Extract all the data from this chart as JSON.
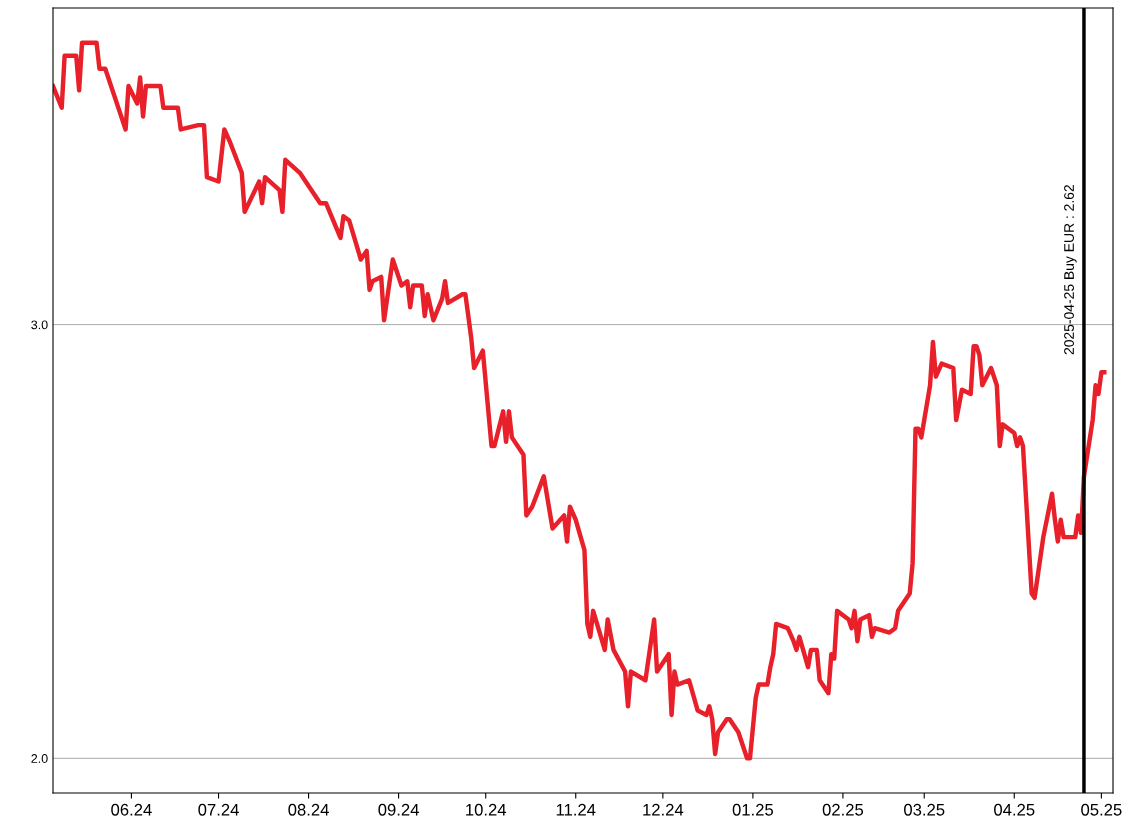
{
  "chart_data": {
    "type": "line",
    "x": [
      "2024-05-05",
      "2024-05-08",
      "2024-05-09",
      "2024-05-13",
      "2024-05-14",
      "2024-05-15",
      "2024-05-20",
      "2024-05-21",
      "2024-05-23",
      "2024-05-28",
      "2024-05-30",
      "2024-05-31",
      "2024-06-03",
      "2024-06-04",
      "2024-06-05",
      "2024-06-06",
      "2024-06-11",
      "2024-06-12",
      "2024-06-17",
      "2024-06-18",
      "2024-06-24",
      "2024-06-26",
      "2024-06-27",
      "2024-07-01",
      "2024-07-02",
      "2024-07-03",
      "2024-07-05",
      "2024-07-09",
      "2024-07-10",
      "2024-07-15",
      "2024-07-16",
      "2024-07-17",
      "2024-07-22",
      "2024-07-23",
      "2024-07-24",
      "2024-07-29",
      "2024-07-31",
      "2024-08-05",
      "2024-08-07",
      "2024-08-12",
      "2024-08-13",
      "2024-08-15",
      "2024-08-19",
      "2024-08-21",
      "2024-08-22",
      "2024-08-23",
      "2024-08-26",
      "2024-08-27",
      "2024-08-30",
      "2024-09-02",
      "2024-09-04",
      "2024-09-05",
      "2024-09-06",
      "2024-09-09",
      "2024-09-10",
      "2024-09-11",
      "2024-09-13",
      "2024-09-16",
      "2024-09-17",
      "2024-09-18",
      "2024-09-23",
      "2024-09-24",
      "2024-09-26",
      "2024-09-27",
      "2024-09-30",
      "2024-10-03",
      "2024-10-04",
      "2024-10-07",
      "2024-10-08",
      "2024-10-09",
      "2024-10-10",
      "2024-10-14",
      "2024-10-15",
      "2024-10-17",
      "2024-10-21",
      "2024-10-23",
      "2024-10-24",
      "2024-10-28",
      "2024-10-29",
      "2024-10-30",
      "2024-11-01",
      "2024-11-04",
      "2024-11-05",
      "2024-11-06",
      "2024-11-07",
      "2024-11-11",
      "2024-11-12",
      "2024-11-14",
      "2024-11-18",
      "2024-11-19",
      "2024-11-20",
      "2024-11-25",
      "2024-11-28",
      "2024-11-29",
      "2024-12-03",
      "2024-12-04",
      "2024-12-05",
      "2024-12-06",
      "2024-12-10",
      "2024-12-13",
      "2024-12-16",
      "2024-12-17",
      "2024-12-18",
      "2024-12-19",
      "2024-12-20",
      "2024-12-23",
      "2024-12-24",
      "2024-12-27",
      "2024-12-30",
      "2024-12-31",
      "2025-01-02",
      "2025-01-03",
      "2025-01-06",
      "2025-01-07",
      "2025-01-08",
      "2025-01-09",
      "2025-01-13",
      "2025-01-15",
      "2025-01-16",
      "2025-01-17",
      "2025-01-20",
      "2025-01-21",
      "2025-01-23",
      "2025-01-24",
      "2025-01-27",
      "2025-01-28",
      "2025-01-29",
      "2025-01-30",
      "2025-02-03",
      "2025-02-04",
      "2025-02-05",
      "2025-02-06",
      "2025-02-07",
      "2025-02-10",
      "2025-02-11",
      "2025-02-12",
      "2025-02-17",
      "2025-02-19",
      "2025-02-20",
      "2025-02-24",
      "2025-02-25",
      "2025-02-26",
      "2025-02-27",
      "2025-02-28",
      "2025-03-03",
      "2025-03-04",
      "2025-03-05",
      "2025-03-07",
      "2025-03-11",
      "2025-03-12",
      "2025-03-14",
      "2025-03-17",
      "2025-03-18",
      "2025-03-19",
      "2025-03-20",
      "2025-03-21",
      "2025-03-24",
      "2025-03-26",
      "2025-03-27",
      "2025-03-28",
      "2025-04-01",
      "2025-04-02",
      "2025-04-03",
      "2025-04-04",
      "2025-04-07",
      "2025-04-08",
      "2025-04-11",
      "2025-04-14",
      "2025-04-15",
      "2025-04-16",
      "2025-04-17",
      "2025-04-18",
      "2025-04-22",
      "2025-04-23",
      "2025-04-24",
      "2025-04-25",
      "2025-04-28",
      "2025-04-29",
      "2025-04-30",
      "2025-05-01",
      "2025-05-02"
    ],
    "series": [
      {
        "color": "#e8202a",
        "values": [
          3.55,
          3.5,
          3.62,
          3.62,
          3.54,
          3.65,
          3.65,
          3.59,
          3.59,
          3.49,
          3.45,
          3.55,
          3.51,
          3.57,
          3.48,
          3.55,
          3.55,
          3.5,
          3.5,
          3.45,
          3.46,
          3.46,
          3.34,
          3.33,
          3.39,
          3.45,
          3.42,
          3.35,
          3.26,
          3.33,
          3.28,
          3.34,
          3.31,
          3.26,
          3.38,
          3.35,
          3.33,
          3.28,
          3.28,
          3.2,
          3.25,
          3.24,
          3.15,
          3.17,
          3.08,
          3.1,
          3.11,
          3.01,
          3.15,
          3.09,
          3.1,
          3.04,
          3.09,
          3.09,
          3.02,
          3.07,
          3.01,
          3.06,
          3.1,
          3.05,
          3.07,
          3.07,
          2.97,
          2.9,
          2.94,
          2.72,
          2.72,
          2.8,
          2.73,
          2.8,
          2.74,
          2.7,
          2.56,
          2.58,
          2.65,
          2.57,
          2.53,
          2.56,
          2.5,
          2.58,
          2.55,
          2.48,
          2.31,
          2.28,
          2.34,
          2.25,
          2.32,
          2.25,
          2.2,
          2.12,
          2.2,
          2.18,
          2.32,
          2.2,
          2.24,
          2.1,
          2.2,
          2.17,
          2.18,
          2.11,
          2.1,
          2.12,
          2.09,
          2.01,
          2.06,
          2.09,
          2.09,
          2.06,
          2.0,
          2.0,
          2.14,
          2.17,
          2.17,
          2.21,
          2.24,
          2.31,
          2.3,
          2.27,
          2.25,
          2.28,
          2.21,
          2.25,
          2.25,
          2.18,
          2.15,
          2.24,
          2.23,
          2.34,
          2.32,
          2.3,
          2.34,
          2.27,
          2.32,
          2.33,
          2.28,
          2.3,
          2.29,
          2.3,
          2.34,
          2.38,
          2.45,
          2.76,
          2.76,
          2.74,
          2.86,
          2.96,
          2.88,
          2.91,
          2.9,
          2.78,
          2.85,
          2.84,
          2.95,
          2.95,
          2.93,
          2.86,
          2.9,
          2.86,
          2.72,
          2.77,
          2.75,
          2.72,
          2.74,
          2.72,
          2.38,
          2.37,
          2.51,
          2.61,
          2.55,
          2.5,
          2.55,
          2.51,
          2.51,
          2.56,
          2.52,
          2.65,
          2.78,
          2.86,
          2.84,
          2.89,
          2.89
        ]
      }
    ],
    "xlim": [
      "2024-05-05",
      "2025-05-05"
    ],
    "xticks": [
      {
        "value": "2024-06-01",
        "label": "06.24"
      },
      {
        "value": "2024-07-01",
        "label": "07.24"
      },
      {
        "value": "2024-08-01",
        "label": "08.24"
      },
      {
        "value": "2024-09-01",
        "label": "09.24"
      },
      {
        "value": "2024-10-01",
        "label": "10.24"
      },
      {
        "value": "2024-11-01",
        "label": "11.24"
      },
      {
        "value": "2024-12-01",
        "label": "12.24"
      },
      {
        "value": "2025-01-01",
        "label": "01.25"
      },
      {
        "value": "2025-02-01",
        "label": "02.25"
      },
      {
        "value": "2025-03-01",
        "label": "03.25"
      },
      {
        "value": "2025-04-01",
        "label": "04.25"
      },
      {
        "value": "2025-05-01",
        "label": "05.25"
      }
    ],
    "ylim": [
      1.92,
      3.73
    ],
    "yticks": [
      {
        "value": 2,
        "label": "2.0"
      },
      {
        "value": 3,
        "label": "3.0"
      }
    ],
    "grid": "y",
    "ref_lines": [
      {
        "axis": "x",
        "value": "2025-04-25",
        "label": "2025-04-25 Buy EUR : 2.62",
        "color": "#000000"
      }
    ]
  }
}
